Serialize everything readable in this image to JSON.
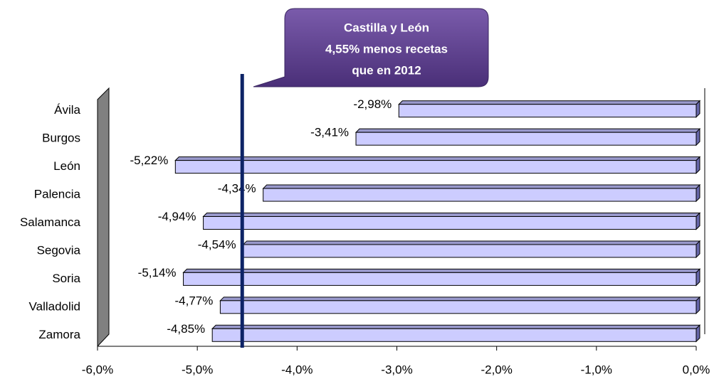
{
  "chart_data": {
    "type": "bar",
    "orientation": "horizontal",
    "categories": [
      "Ávila",
      "Burgos",
      "León",
      "Palencia",
      "Salamanca",
      "Segovia",
      "Soria",
      "Valladolid",
      "Zamora"
    ],
    "values": [
      -2.98,
      -3.41,
      -5.22,
      -4.34,
      -4.94,
      -4.54,
      -5.14,
      -4.77,
      -4.85
    ],
    "value_labels": [
      "-2,98%",
      "-3,41%",
      "-5,22%",
      "-4,34%",
      "-4,94%",
      "-4,54%",
      "-5,14%",
      "-4,77%",
      "-4,85%"
    ],
    "color": "#ccccff",
    "xlim": [
      -6,
      0
    ],
    "xticks": [
      {
        "value": -6,
        "label": "-6,0%"
      },
      {
        "value": -5,
        "label": "-5,0%"
      },
      {
        "value": -4,
        "label": "-4,0%"
      },
      {
        "value": -3,
        "label": "-3,0%"
      },
      {
        "value": -2,
        "label": "-2,0%"
      },
      {
        "value": -1,
        "label": "-1,0%"
      },
      {
        "value": 0,
        "label": "0,0%"
      }
    ],
    "reference_line": {
      "value": -4.55,
      "color": "#0d2366"
    },
    "annotation": [
      "Castilla y León",
      "4,55% menos recetas",
      "que en 2012"
    ]
  }
}
